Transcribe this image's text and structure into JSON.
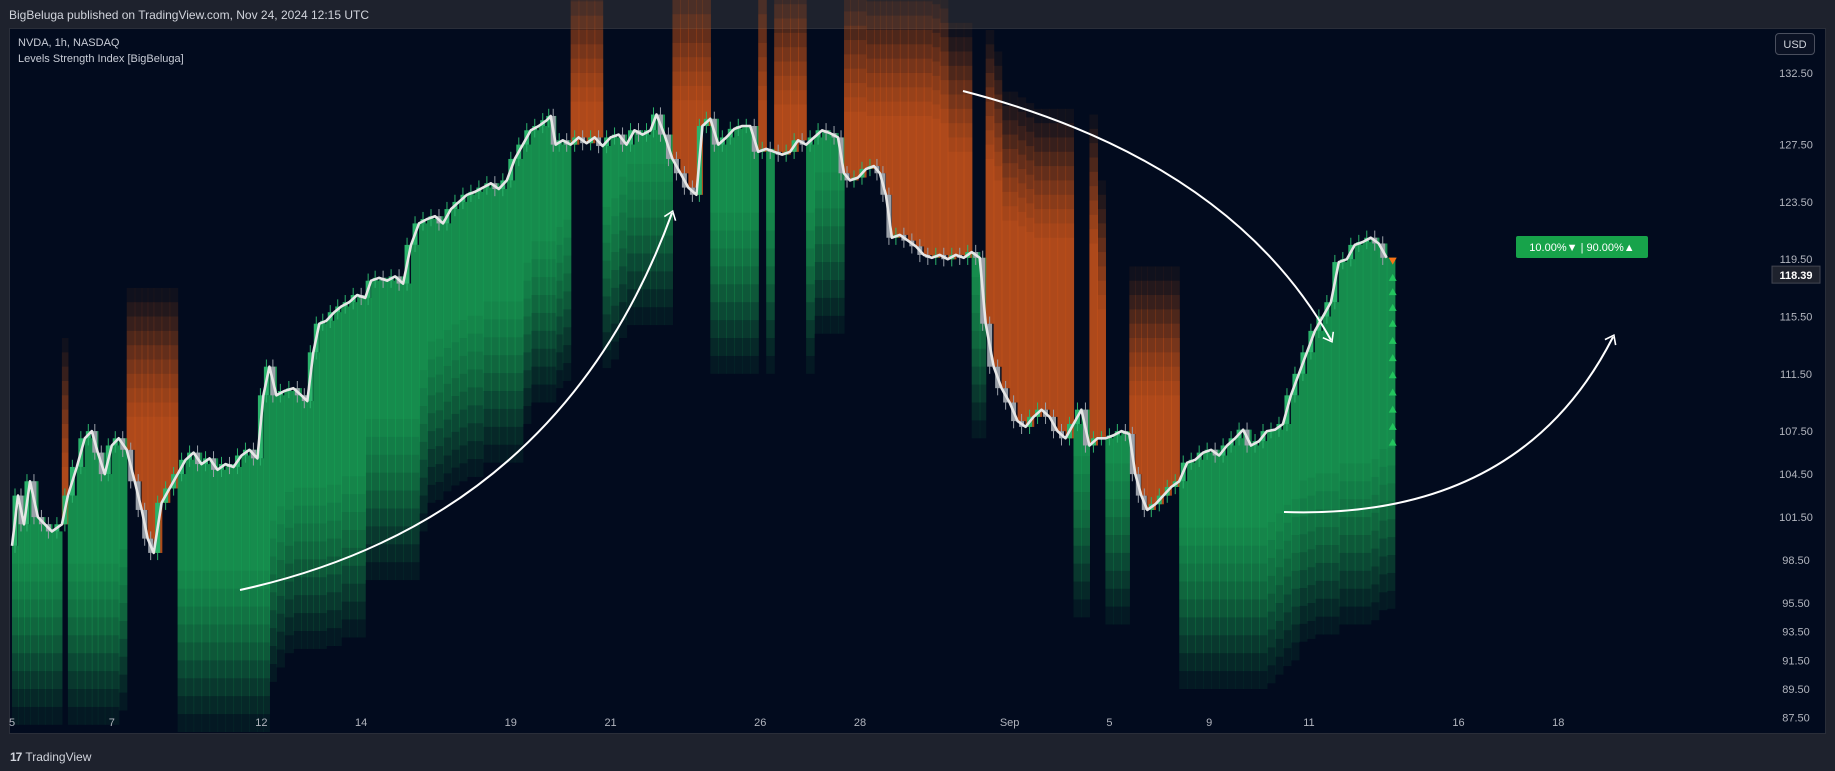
{
  "header": {
    "published": "BigBeluga published on TradingView.com, Nov 24, 2024 12:15 UTC"
  },
  "legend": {
    "symbol": "NVDA, 1h, NASDAQ",
    "indicator": "Levels Strength Index [BigBeluga]"
  },
  "currency_button": "USD",
  "footer": {
    "brand": "TradingView",
    "logo_glyph": "17"
  },
  "colors": {
    "background": "#020b1e",
    "bull": "#1a9e55",
    "bear": "#c5541c",
    "price_line": "#e6e6e6",
    "label_bg": "#17a34a"
  },
  "chart_data": {
    "type": "line",
    "symbol": "NVDA",
    "timeframe": "1h",
    "ylim": [
      86.5,
      135.5
    ],
    "y_ticks": [
      132.5,
      127.5,
      123.5,
      119.5,
      115.5,
      111.5,
      107.5,
      104.5,
      101.5,
      98.5,
      95.5,
      93.5,
      91.5,
      89.5,
      87.5
    ],
    "x_ticks": [
      {
        "label": "5",
        "x": 0
      },
      {
        "label": "7",
        "x": 10
      },
      {
        "label": "12",
        "x": 25
      },
      {
        "label": "14",
        "x": 35
      },
      {
        "label": "19",
        "x": 50
      },
      {
        "label": "21",
        "x": 60
      },
      {
        "label": "26",
        "x": 75
      },
      {
        "label": "28",
        "x": 85
      },
      {
        "label": "Sep",
        "x": 100
      },
      {
        "label": "5",
        "x": 110
      },
      {
        "label": "9",
        "x": 120
      },
      {
        "label": "11",
        "x": 130
      },
      {
        "label": "16",
        "x": 145
      },
      {
        "label": "18",
        "x": 155
      }
    ],
    "xlim": [
      0,
      168
    ],
    "price": [
      [
        0,
        99.5
      ],
      [
        0.6,
        103
      ],
      [
        1.2,
        101
      ],
      [
        1.8,
        104
      ],
      [
        2.6,
        101.5
      ],
      [
        3.3,
        101
      ],
      [
        4,
        100.5
      ],
      [
        5,
        101
      ],
      [
        5.6,
        103
      ],
      [
        6.5,
        105
      ],
      [
        7.3,
        107
      ],
      [
        8,
        107.5
      ],
      [
        8.6,
        106
      ],
      [
        9.3,
        104.5
      ],
      [
        10,
        106.5
      ],
      [
        10.7,
        107
      ],
      [
        11.5,
        106.2
      ],
      [
        12.3,
        104
      ],
      [
        13,
        102
      ],
      [
        13.6,
        100
      ],
      [
        14.2,
        99
      ],
      [
        15,
        102.5
      ],
      [
        15.8,
        103.5
      ],
      [
        16.6,
        104.5
      ],
      [
        17.4,
        105.5
      ],
      [
        18.2,
        106
      ],
      [
        19,
        105.2
      ],
      [
        19.8,
        105.6
      ],
      [
        20.6,
        104.8
      ],
      [
        21.4,
        105.2
      ],
      [
        22.2,
        105
      ],
      [
        23,
        105.8
      ],
      [
        23.8,
        106.2
      ],
      [
        24.6,
        105.6
      ],
      [
        25.2,
        110
      ],
      [
        25.8,
        112
      ],
      [
        26.5,
        110
      ],
      [
        27.3,
        110.3
      ],
      [
        28.2,
        110.5
      ],
      [
        29,
        110
      ],
      [
        29.6,
        109.6
      ],
      [
        30.2,
        113
      ],
      [
        30.8,
        115
      ],
      [
        31.5,
        115.2
      ],
      [
        32.3,
        115.8
      ],
      [
        33,
        116.2
      ],
      [
        33.8,
        116.5
      ],
      [
        34.6,
        117
      ],
      [
        35.4,
        116.8
      ],
      [
        36,
        118
      ],
      [
        36.8,
        118.2
      ],
      [
        37.6,
        118
      ],
      [
        38.4,
        118.3
      ],
      [
        39.2,
        117.8
      ],
      [
        40,
        120.5
      ],
      [
        40.8,
        122
      ],
      [
        41.6,
        122.3
      ],
      [
        42.4,
        122.5
      ],
      [
        43.2,
        122
      ],
      [
        44,
        123
      ],
      [
        44.8,
        123.5
      ],
      [
        45.6,
        124
      ],
      [
        46.4,
        124.2
      ],
      [
        47.2,
        124.5
      ],
      [
        48,
        124.8
      ],
      [
        48.8,
        124.4
      ],
      [
        49.6,
        125
      ],
      [
        50.4,
        126.5
      ],
      [
        51.2,
        127.5
      ],
      [
        52,
        128.5
      ],
      [
        52.8,
        128.8
      ],
      [
        53.6,
        129.2
      ],
      [
        54,
        129.5
      ],
      [
        54.5,
        127.5
      ],
      [
        55.2,
        127.8
      ],
      [
        56,
        127.5
      ],
      [
        56.8,
        128
      ],
      [
        57.6,
        127.6
      ],
      [
        58.4,
        128
      ],
      [
        59.2,
        127.4
      ],
      [
        60,
        128
      ],
      [
        60.8,
        128.2
      ],
      [
        61.6,
        127.5
      ],
      [
        62.4,
        128.5
      ],
      [
        63.2,
        128.2
      ],
      [
        64,
        128.5
      ],
      [
        64.6,
        129.6
      ],
      [
        65.4,
        128.2
      ],
      [
        66.2,
        126.5
      ],
      [
        67,
        125.5
      ],
      [
        67.8,
        124.5
      ],
      [
        68.6,
        124
      ],
      [
        69.2,
        128.8
      ],
      [
        70,
        129.3
      ],
      [
        70.8,
        127.5
      ],
      [
        71.6,
        128
      ],
      [
        72.4,
        128.6
      ],
      [
        73.2,
        128.8
      ],
      [
        74,
        128.8
      ],
      [
        74.8,
        127
      ],
      [
        75.6,
        127.2
      ],
      [
        76.4,
        127
      ],
      [
        77.2,
        126.8
      ],
      [
        78,
        127
      ],
      [
        78.8,
        127.8
      ],
      [
        79.6,
        127.5
      ],
      [
        80.4,
        128
      ],
      [
        81.2,
        128.5
      ],
      [
        82,
        128.3
      ],
      [
        82.8,
        128
      ],
      [
        83.4,
        125.5
      ],
      [
        84,
        125
      ],
      [
        84.8,
        125.2
      ],
      [
        85.6,
        125.8
      ],
      [
        86.4,
        126
      ],
      [
        87,
        125.5
      ],
      [
        87.6,
        124
      ],
      [
        88.2,
        121
      ],
      [
        89,
        121.2
      ],
      [
        89.8,
        120.8
      ],
      [
        90.6,
        120.4
      ],
      [
        91.4,
        119.8
      ],
      [
        92.2,
        119.6
      ],
      [
        93,
        119.8
      ],
      [
        93.8,
        119.5
      ],
      [
        94.6,
        119.8
      ],
      [
        95.4,
        119.6
      ],
      [
        96.2,
        120
      ],
      [
        97,
        119.6
      ],
      [
        97.6,
        115
      ],
      [
        98.4,
        112
      ],
      [
        99.2,
        110.5
      ],
      [
        100,
        109.5
      ],
      [
        100.8,
        108.2
      ],
      [
        101.6,
        107.8
      ],
      [
        102.4,
        108.5
      ],
      [
        103.2,
        109
      ],
      [
        104,
        108.5
      ],
      [
        104.8,
        107.5
      ],
      [
        105.6,
        107
      ],
      [
        106.4,
        108
      ],
      [
        107.2,
        109
      ],
      [
        108,
        106.5
      ],
      [
        108.8,
        107
      ],
      [
        109.6,
        107
      ],
      [
        110.4,
        107.2
      ],
      [
        111.2,
        107.5
      ],
      [
        112,
        107.3
      ],
      [
        112.6,
        104.5
      ],
      [
        113.2,
        103
      ],
      [
        113.8,
        102
      ],
      [
        114.6,
        102.4
      ],
      [
        115.4,
        103
      ],
      [
        116.2,
        103.6
      ],
      [
        117,
        104
      ],
      [
        117.8,
        105.3
      ],
      [
        118.6,
        105.5
      ],
      [
        119.4,
        106
      ],
      [
        120.2,
        106.2
      ],
      [
        121,
        105.8
      ],
      [
        121.8,
        106.5
      ],
      [
        122.6,
        107
      ],
      [
        123.4,
        107.6
      ],
      [
        124.2,
        106.5
      ],
      [
        125,
        106.8
      ],
      [
        125.8,
        107.5
      ],
      [
        126.6,
        107.6
      ],
      [
        127.4,
        108
      ],
      [
        128.2,
        110
      ],
      [
        129,
        111.5
      ],
      [
        129.8,
        113
      ],
      [
        130.6,
        114.5
      ],
      [
        131.4,
        115.5
      ],
      [
        132.2,
        116.5
      ],
      [
        133,
        119.3
      ],
      [
        133.8,
        119.5
      ],
      [
        134.6,
        120.5
      ],
      [
        135.4,
        120.7
      ],
      [
        136.2,
        121
      ],
      [
        137,
        120.6
      ],
      [
        137.8,
        119.6
      ]
    ],
    "last_price": 118.39,
    "strength_label": {
      "down_pct": "10.00%",
      "up_pct": "90.00%",
      "separator": "|",
      "down_glyph": "▼",
      "up_glyph": "▲"
    },
    "signal_x": 138.4,
    "signal_up_levels": [
      118.2,
      117.2,
      116.1,
      115.0,
      113.8,
      112.6,
      111.4,
      110.2,
      109.0,
      107.8,
      106.7
    ],
    "signal_down_level": 119.4
  }
}
